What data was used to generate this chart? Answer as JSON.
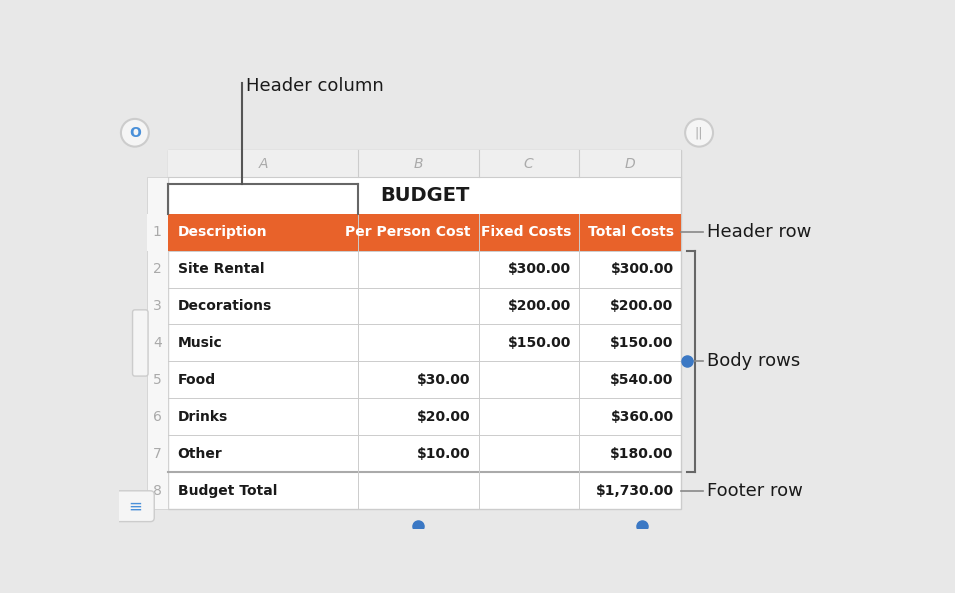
{
  "title": "BUDGET",
  "col_labels": [
    "A",
    "B",
    "C",
    "D"
  ],
  "header_row": [
    "Description",
    "Per Person Cost",
    "Fixed Costs",
    "Total Costs"
  ],
  "body_rows": [
    [
      "Site Rental",
      "",
      "$300.00",
      "$300.00"
    ],
    [
      "Decorations",
      "",
      "$200.00",
      "$200.00"
    ],
    [
      "Music",
      "",
      "$150.00",
      "$150.00"
    ],
    [
      "Food",
      "$30.00",
      "",
      "$540.00"
    ],
    [
      "Drinks",
      "$20.00",
      "",
      "$360.00"
    ],
    [
      "Other",
      "$10.00",
      "",
      "$180.00"
    ]
  ],
  "footer_row": [
    "Budget Total",
    "",
    "",
    "$1,730.00"
  ],
  "header_row_color": "#E8622A",
  "header_text_color": "#FFFFFF",
  "body_bg_color": "#FFFFFF",
  "body_text_color": "#1A1A1A",
  "grid_color": "#CCCCCC",
  "col_hdr_bg": "#EFEFEF",
  "col_hdr_text": "#AAAAAA",
  "row_num_text": "#AAAAAA",
  "annotation_color": "#1A1A1A",
  "blue_dot_color": "#3B78C4",
  "outer_bg": "#E8E8E8",
  "ann_line_color": "#888888",
  "bracket_color": "#666666"
}
